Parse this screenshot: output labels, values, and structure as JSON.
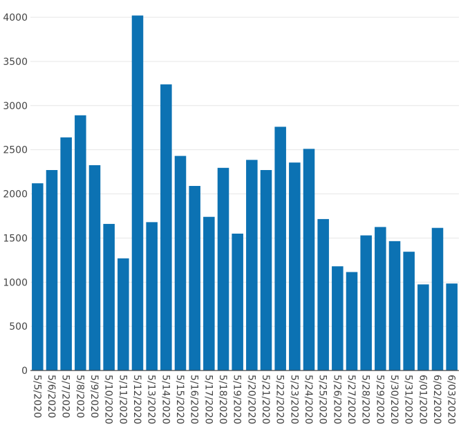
{
  "chart_data": {
    "type": "bar",
    "title": "",
    "xlabel": "",
    "ylabel": "",
    "ylim": [
      0,
      4000
    ],
    "yticks": [
      0,
      500,
      1000,
      1500,
      2000,
      2500,
      3000,
      3500,
      4000
    ],
    "grid": true,
    "legend": "none",
    "bar_color": "#0c72b3",
    "categories": [
      "5/5/2020",
      "5/6/2020",
      "5/7/2020",
      "5/8/2020",
      "5/9/2020",
      "5/10/2020",
      "5/11/2020",
      "5/12/2020",
      "5/13/2020",
      "5/14/2020",
      "5/15/2020",
      "5/16/2020",
      "5/17/2020",
      "5/18/2020",
      "5/19/2020",
      "5/20/2020",
      "5/21/2020",
      "5/22/2020",
      "5/23/2020",
      "5/24/2020",
      "5/25/2020",
      "5/26/2020",
      "5/27/2020",
      "5/28/2020",
      "5/29/2020",
      "5/30/2020",
      "5/31/2020",
      "6/01/2020",
      "6/02/2020",
      "6/03/2020"
    ],
    "values": [
      2120,
      2270,
      2640,
      2890,
      2325,
      1660,
      1270,
      4020,
      1680,
      3240,
      2430,
      2090,
      1740,
      2295,
      1550,
      2385,
      2270,
      2760,
      2355,
      2510,
      1715,
      1180,
      1115,
      1530,
      1625,
      1465,
      1345,
      975,
      1615,
      985
    ]
  }
}
